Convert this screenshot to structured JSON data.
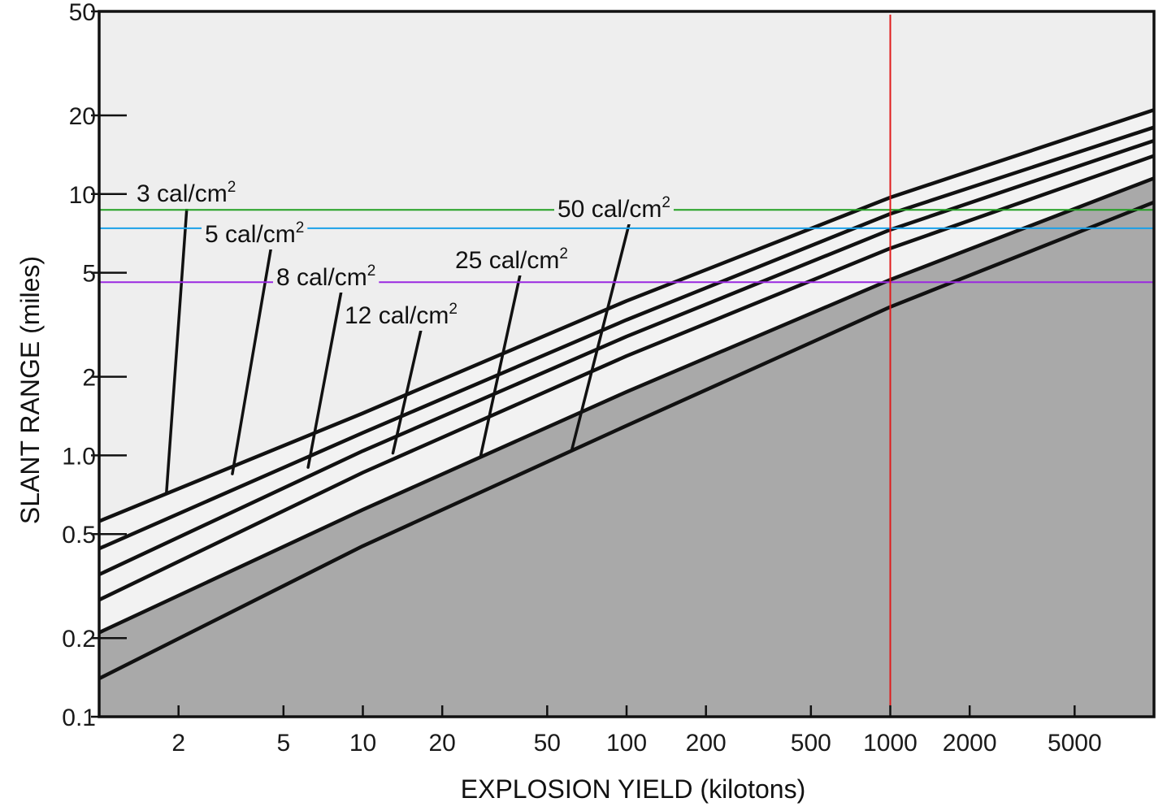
{
  "chart_data": {
    "type": "line",
    "xlabel": "EXPLOSION YIELD (kilotons)",
    "ylabel": "SLANT RANGE (miles)",
    "x_scale": "log",
    "y_scale": "log",
    "xlim": [
      1,
      10000
    ],
    "ylim": [
      0.1,
      50
    ],
    "x_ticks": [
      {
        "value": 2,
        "label": "2"
      },
      {
        "value": 5,
        "label": "5"
      },
      {
        "value": 10,
        "label": "10"
      },
      {
        "value": 20,
        "label": "20"
      },
      {
        "value": 50,
        "label": "50"
      },
      {
        "value": 100,
        "label": "100"
      },
      {
        "value": 200,
        "label": "200"
      },
      {
        "value": 500,
        "label": "500"
      },
      {
        "value": 1000,
        "label": "1000"
      },
      {
        "value": 2000,
        "label": "2000"
      },
      {
        "value": 5000,
        "label": "5000"
      }
    ],
    "y_ticks": [
      {
        "value": 0.1,
        "label": "0.1"
      },
      {
        "value": 0.2,
        "label": "0.2"
      },
      {
        "value": 0.5,
        "label": "0.5"
      },
      {
        "value": 1,
        "label": "1.0"
      },
      {
        "value": 2,
        "label": "2"
      },
      {
        "value": 5,
        "label": "5"
      },
      {
        "value": 10,
        "label": "10"
      },
      {
        "value": 20,
        "label": "20"
      },
      {
        "value": 50,
        "label": "50"
      }
    ],
    "grid": false,
    "colors": {
      "plot_background": "#eeeeee",
      "band_fill": "#f2f2f2",
      "dark_fill": "#a9a9a9",
      "curve": "#111111"
    },
    "series": [
      {
        "name": "3 cal/cm2",
        "label_main": "3 cal/cm",
        "label_sup": "2",
        "x": [
          1,
          10,
          100,
          1000,
          10000
        ],
        "y": [
          0.56,
          1.45,
          3.9,
          9.7,
          21
        ]
      },
      {
        "name": "5 cal/cm2",
        "label_main": "5 cal/cm",
        "label_sup": "2",
        "x": [
          1,
          10,
          100,
          1000,
          10000
        ],
        "y": [
          0.44,
          1.22,
          3.3,
          8.4,
          18
        ]
      },
      {
        "name": "8 cal/cm2",
        "label_main": "8 cal/cm",
        "label_sup": "2",
        "x": [
          1,
          10,
          100,
          1000,
          10000
        ],
        "y": [
          0.35,
          1.04,
          2.85,
          7.3,
          16
        ]
      },
      {
        "name": "12 cal/cm2",
        "label_main": "12 cal/cm",
        "label_sup": "2",
        "x": [
          1,
          10,
          100,
          1000,
          10000
        ],
        "y": [
          0.28,
          0.86,
          2.4,
          6.2,
          14
        ]
      },
      {
        "name": "25 cal/cm2",
        "label_main": "25 cal/cm",
        "label_sup": "2",
        "x": [
          1,
          10,
          100,
          1000,
          10000
        ],
        "y": [
          0.21,
          0.62,
          1.75,
          4.7,
          11.5
        ]
      },
      {
        "name": "50 cal/cm2",
        "label_main": "50 cal/cm",
        "label_sup": "2",
        "x": [
          1,
          10,
          100,
          1000,
          10000
        ],
        "y": [
          0.14,
          0.45,
          1.3,
          3.7,
          9.3
        ]
      }
    ],
    "leader_lines": [
      {
        "series": "3 cal/cm2",
        "x": 1.8,
        "y": 0.72
      },
      {
        "series": "5 cal/cm2",
        "x": 3.2,
        "y": 0.85
      },
      {
        "series": "8 cal/cm2",
        "x": 6.2,
        "y": 0.9
      },
      {
        "series": "12 cal/cm2",
        "x": 13,
        "y": 1.02
      },
      {
        "series": "25 cal/cm2",
        "x": 28,
        "y": 1.0
      },
      {
        "series": "50 cal/cm2",
        "x": 62,
        "y": 1.05
      }
    ],
    "reference_lines": [
      {
        "orientation": "horizontal",
        "value": 8.7,
        "color": "#22a022"
      },
      {
        "orientation": "horizontal",
        "value": 7.4,
        "color": "#1aa0e8"
      },
      {
        "orientation": "horizontal",
        "value": 4.6,
        "color": "#9a28e0"
      },
      {
        "orientation": "vertical",
        "value": 1000,
        "color": "#e01a1a"
      }
    ]
  }
}
